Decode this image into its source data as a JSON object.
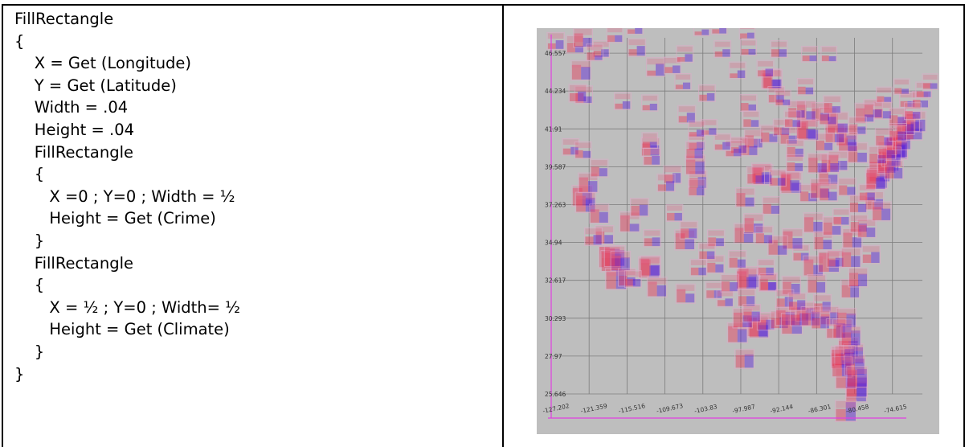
{
  "code": {
    "lines": [
      "FillRectangle",
      "{",
      "    X = Get (Longitude)",
      "    Y = Get (Latitude)",
      "    Width = .04",
      "    Height = .04",
      "    FillRectangle",
      "    {",
      "       X =0 ; Y=0 ; Width = ½",
      "       Height = Get (Crime)",
      "    }",
      "    FillRectangle",
      "    {",
      "       X = ½ ; Y=0 ; Width= ½",
      "       Height = Get (Climate)",
      "    }",
      "}"
    ]
  },
  "chart_data": {
    "type": "scatter",
    "xlim": [
      -127.202,
      -70
    ],
    "ylim": [
      25.646,
      47.5
    ],
    "x_ticks": [
      "-127.202",
      "-121.359",
      "-115.516",
      "-109.673",
      "-103.83",
      "-97.987",
      "-92.144",
      "-86.301",
      "-80.458",
      "-74.615"
    ],
    "y_ticks": [
      "25.646",
      "27.97",
      "30.293",
      "32.617",
      "34.94",
      "37.263",
      "39.587",
      "41.91",
      "44.234",
      "46.557"
    ],
    "grid": true,
    "colors": {
      "background": "#bebebe",
      "grid": "#7c7c7c",
      "axis": "#e040e0",
      "climate": "#5a20d8",
      "crime": "#e63a5a",
      "outline": "#e0a8c8"
    },
    "points": [
      [
        -126.5,
        47.3,
        0.35,
        0.55
      ],
      [
        -123.5,
        47.1,
        0.6,
        0.4
      ],
      [
        -122.3,
        47.5,
        0.75,
        0.5
      ],
      [
        -122.6,
        45.5,
        0.8,
        0.7
      ],
      [
        -122.2,
        44.0,
        0.6,
        0.4
      ],
      [
        -123.1,
        44.1,
        0.5,
        0.6
      ],
      [
        -119.5,
        46.8,
        0.4,
        0.5
      ],
      [
        -117.4,
        47.7,
        0.45,
        0.45
      ],
      [
        -116.2,
        43.6,
        0.35,
        0.5
      ],
      [
        -120.5,
        46.6,
        0.5,
        0.3
      ],
      [
        -114.0,
        46.9,
        0.4,
        0.6
      ],
      [
        -111.1,
        45.7,
        0.3,
        0.7
      ],
      [
        -108.5,
        45.8,
        0.4,
        0.5
      ],
      [
        -106.6,
        46.5,
        0.3,
        0.5
      ],
      [
        -112.0,
        43.5,
        0.35,
        0.45
      ],
      [
        -106.3,
        42.8,
        0.4,
        0.6
      ],
      [
        -104.8,
        41.1,
        0.45,
        0.5
      ],
      [
        -111.9,
        40.8,
        0.7,
        0.6
      ],
      [
        -111.7,
        40.2,
        0.5,
        0.55
      ],
      [
        -112.0,
        41.2,
        0.4,
        0.4
      ],
      [
        -122.4,
        37.8,
        0.9,
        0.7
      ],
      [
        -121.9,
        37.4,
        0.85,
        0.75
      ],
      [
        -121.5,
        38.6,
        0.8,
        0.6
      ],
      [
        -119.8,
        36.7,
        0.75,
        0.6
      ],
      [
        -119.0,
        35.4,
        0.7,
        0.5
      ],
      [
        -118.2,
        34.05,
        1.0,
        0.9
      ],
      [
        -117.9,
        33.8,
        0.95,
        0.85
      ],
      [
        -117.4,
        34.1,
        0.9,
        0.8
      ],
      [
        -117.2,
        32.7,
        0.85,
        0.95
      ],
      [
        -116.5,
        33.8,
        0.8,
        0.7
      ],
      [
        -115.5,
        32.8,
        0.6,
        0.5
      ],
      [
        -120.7,
        35.3,
        0.5,
        0.6
      ],
      [
        -124.2,
        40.8,
        0.4,
        0.5
      ],
      [
        -122.3,
        40.6,
        0.5,
        0.45
      ],
      [
        -119.8,
        39.5,
        0.6,
        0.5
      ],
      [
        -115.1,
        36.2,
        0.85,
        0.4
      ],
      [
        -112.1,
        33.4,
        0.95,
        0.6
      ],
      [
        -111.9,
        33.5,
        0.85,
        0.55
      ],
      [
        -110.9,
        32.2,
        0.8,
        0.6
      ],
      [
        -114.6,
        32.7,
        0.5,
        0.5
      ],
      [
        -106.6,
        35.1,
        0.85,
        0.55
      ],
      [
        -106.0,
        35.7,
        0.6,
        0.6
      ],
      [
        -106.5,
        31.8,
        0.75,
        0.5
      ],
      [
        -104.6,
        38.8,
        0.6,
        0.65
      ],
      [
        -105.0,
        39.7,
        0.8,
        0.7
      ],
      [
        -105.1,
        40.6,
        0.6,
        0.6
      ],
      [
        -104.8,
        38.3,
        0.5,
        0.5
      ],
      [
        -103.2,
        44.1,
        0.4,
        0.5
      ],
      [
        -96.8,
        43.5,
        0.5,
        0.4
      ],
      [
        -96.8,
        46.9,
        0.4,
        0.4
      ],
      [
        -100.8,
        46.8,
        0.35,
        0.5
      ],
      [
        -98.5,
        45.5,
        0.3,
        0.5
      ],
      [
        -93.3,
        44.98,
        0.8,
        0.45
      ],
      [
        -93.1,
        44.95,
        0.75,
        0.5
      ],
      [
        -92.5,
        44.0,
        0.5,
        0.5
      ],
      [
        -94.2,
        45.6,
        0.4,
        0.5
      ],
      [
        -92.1,
        46.8,
        0.5,
        0.5
      ],
      [
        -96.0,
        41.3,
        0.7,
        0.5
      ],
      [
        -96.7,
        40.8,
        0.6,
        0.55
      ],
      [
        -93.6,
        41.6,
        0.6,
        0.5
      ],
      [
        -91.7,
        42.0,
        0.5,
        0.5
      ],
      [
        -90.6,
        41.5,
        0.6,
        0.5
      ],
      [
        -94.6,
        39.1,
        0.85,
        0.5
      ],
      [
        -94.8,
        39.2,
        0.8,
        0.55
      ],
      [
        -95.7,
        39.05,
        0.6,
        0.5
      ],
      [
        -97.3,
        37.7,
        0.75,
        0.5
      ],
      [
        -90.2,
        38.6,
        0.95,
        0.5
      ],
      [
        -90.4,
        38.7,
        0.85,
        0.55
      ],
      [
        -92.3,
        38.9,
        0.5,
        0.5
      ],
      [
        -93.3,
        37.2,
        0.6,
        0.5
      ],
      [
        -97.5,
        35.5,
        0.8,
        0.55
      ],
      [
        -96.0,
        36.1,
        0.8,
        0.5
      ],
      [
        -96.8,
        32.8,
        0.95,
        0.65
      ],
      [
        -97.1,
        32.7,
        0.9,
        0.6
      ],
      [
        -95.4,
        29.8,
        0.95,
        0.7
      ],
      [
        -95.2,
        29.7,
        0.85,
        0.65
      ],
      [
        -98.5,
        29.4,
        0.85,
        0.7
      ],
      [
        -97.7,
        30.3,
        0.8,
        0.65
      ],
      [
        -97.4,
        27.8,
        0.7,
        0.75
      ],
      [
        -101.9,
        33.6,
        0.6,
        0.5
      ],
      [
        -101.8,
        35.2,
        0.55,
        0.5
      ],
      [
        -102.1,
        32.0,
        0.5,
        0.5
      ],
      [
        -100.4,
        31.5,
        0.4,
        0.5
      ],
      [
        -94.1,
        30.1,
        0.6,
        0.6
      ],
      [
        -93.8,
        32.5,
        0.7,
        0.5
      ],
      [
        -92.0,
        30.2,
        0.6,
        0.65
      ],
      [
        -91.1,
        30.45,
        0.8,
        0.7
      ],
      [
        -90.1,
        29.95,
        0.95,
        0.8
      ],
      [
        -90.2,
        32.3,
        0.7,
        0.6
      ],
      [
        -88.7,
        34.3,
        0.5,
        0.5
      ],
      [
        -90.0,
        35.15,
        0.9,
        0.55
      ],
      [
        -92.3,
        34.75,
        0.8,
        0.5
      ],
      [
        -94.4,
        35.4,
        0.6,
        0.5
      ],
      [
        -88.0,
        30.7,
        0.75,
        0.7
      ],
      [
        -86.8,
        33.5,
        0.85,
        0.55
      ],
      [
        -86.3,
        32.4,
        0.7,
        0.6
      ],
      [
        -85.4,
        31.2,
        0.5,
        0.6
      ],
      [
        -84.3,
        30.45,
        0.6,
        0.7
      ],
      [
        -81.7,
        30.3,
        0.8,
        0.75
      ],
      [
        -81.4,
        28.5,
        0.85,
        0.85
      ],
      [
        -82.5,
        27.95,
        0.85,
        0.85
      ],
      [
        -82.6,
        27.8,
        0.8,
        0.8
      ],
      [
        -80.2,
        25.8,
        0.95,
        0.95
      ],
      [
        -80.1,
        26.1,
        0.9,
        0.95
      ],
      [
        -81.8,
        26.6,
        0.6,
        0.9
      ],
      [
        -80.6,
        28.1,
        0.6,
        0.85
      ],
      [
        -84.4,
        33.75,
        0.95,
        0.6
      ],
      [
        -83.4,
        33.95,
        0.5,
        0.55
      ],
      [
        -81.1,
        32.1,
        0.7,
        0.7
      ],
      [
        -81.0,
        34.0,
        0.8,
        0.6
      ],
      [
        -79.9,
        32.8,
        0.75,
        0.7
      ],
      [
        -80.8,
        35.2,
        0.8,
        0.55
      ],
      [
        -79.8,
        36.1,
        0.6,
        0.5
      ],
      [
        -78.6,
        35.8,
        0.7,
        0.55
      ],
      [
        -77.9,
        34.2,
        0.5,
        0.65
      ],
      [
        -77.4,
        37.5,
        0.7,
        0.6
      ],
      [
        -76.3,
        36.85,
        0.75,
        0.65
      ],
      [
        -76.6,
        39.3,
        0.95,
        0.65
      ],
      [
        -77.0,
        38.9,
        0.95,
        0.6
      ],
      [
        -77.2,
        38.8,
        0.85,
        0.6
      ],
      [
        -75.2,
        39.95,
        0.95,
        0.6
      ],
      [
        -74.0,
        40.7,
        1.0,
        0.7
      ],
      [
        -74.2,
        40.73,
        0.9,
        0.65
      ],
      [
        -73.9,
        40.8,
        0.95,
        0.7
      ],
      [
        -73.2,
        41.2,
        0.7,
        0.6
      ],
      [
        -72.7,
        41.8,
        0.7,
        0.6
      ],
      [
        -71.4,
        41.8,
        0.7,
        0.6
      ],
      [
        -71.06,
        42.36,
        0.9,
        0.6
      ],
      [
        -71.8,
        42.3,
        0.6,
        0.55
      ],
      [
        -72.6,
        42.1,
        0.6,
        0.6
      ],
      [
        -73.8,
        42.65,
        0.6,
        0.5
      ],
      [
        -76.1,
        43.05,
        0.6,
        0.45
      ],
      [
        -77.6,
        43.15,
        0.7,
        0.45
      ],
      [
        -78.9,
        42.9,
        0.75,
        0.4
      ],
      [
        -80.0,
        42.1,
        0.6,
        0.45
      ],
      [
        -80.0,
        40.45,
        0.85,
        0.5
      ],
      [
        -81.7,
        41.5,
        0.9,
        0.5
      ],
      [
        -81.5,
        41.1,
        0.75,
        0.5
      ],
      [
        -83.0,
        39.95,
        0.8,
        0.5
      ],
      [
        -84.5,
        39.1,
        0.8,
        0.5
      ],
      [
        -84.2,
        39.8,
        0.7,
        0.5
      ],
      [
        -83.5,
        41.65,
        0.8,
        0.45
      ],
      [
        -83.05,
        42.3,
        0.95,
        0.45
      ],
      [
        -85.7,
        42.95,
        0.7,
        0.45
      ],
      [
        -84.55,
        42.7,
        0.6,
        0.45
      ],
      [
        -86.15,
        39.8,
        0.8,
        0.5
      ],
      [
        -85.1,
        41.1,
        0.6,
        0.45
      ],
      [
        -87.6,
        41.85,
        0.95,
        0.5
      ],
      [
        -87.9,
        41.9,
        0.85,
        0.5
      ],
      [
        -87.9,
        43.05,
        0.8,
        0.45
      ],
      [
        -89.4,
        43.1,
        0.6,
        0.45
      ],
      [
        -88.0,
        44.5,
        0.5,
        0.45
      ],
      [
        -89.6,
        40.7,
        0.6,
        0.5
      ],
      [
        -89.65,
        39.8,
        0.55,
        0.5
      ],
      [
        -87.55,
        37.97,
        0.6,
        0.5
      ],
      [
        -85.75,
        38.25,
        0.8,
        0.5
      ],
      [
        -84.5,
        38.05,
        0.7,
        0.5
      ],
      [
        -86.8,
        36.15,
        0.8,
        0.55
      ],
      [
        -85.3,
        35.05,
        0.7,
        0.55
      ],
      [
        -83.9,
        35.95,
        0.7,
        0.5
      ],
      [
        -82.5,
        36.5,
        0.5,
        0.5
      ],
      [
        -81.6,
        38.35,
        0.6,
        0.5
      ],
      [
        -79.9,
        37.3,
        0.6,
        0.5
      ],
      [
        -78.5,
        38.0,
        0.5,
        0.5
      ],
      [
        -75.5,
        39.75,
        0.7,
        0.6
      ],
      [
        -74.75,
        40.2,
        0.75,
        0.6
      ],
      [
        -74.4,
        39.4,
        0.7,
        0.6
      ],
      [
        -76.9,
        40.3,
        0.6,
        0.5
      ],
      [
        -75.5,
        40.6,
        0.6,
        0.5
      ],
      [
        -75.9,
        41.4,
        0.6,
        0.5
      ],
      [
        -73.8,
        41.7,
        0.6,
        0.55
      ],
      [
        -72.3,
        43.7,
        0.4,
        0.4
      ],
      [
        -70.3,
        43.7,
        0.5,
        0.45
      ],
      [
        -71.5,
        43.0,
        0.5,
        0.45
      ],
      [
        -73.2,
        44.5,
        0.4,
        0.35
      ],
      [
        -69.8,
        44.3,
        0.4,
        0.4
      ],
      [
        -68.8,
        44.8,
        0.4,
        0.4
      ],
      [
        -75.9,
        44.0,
        0.4,
        0.35
      ],
      [
        -83.9,
        43.4,
        0.6,
        0.4
      ],
      [
        -84.4,
        46.5,
        0.4,
        0.35
      ],
      [
        -87.4,
        46.5,
        0.4,
        0.4
      ],
      [
        -90.0,
        42.5,
        0.5,
        0.45
      ],
      [
        -96.4,
        42.5,
        0.5,
        0.45
      ],
      [
        -98.3,
        40.9,
        0.4,
        0.5
      ],
      [
        -99.1,
        40.7,
        0.35,
        0.5
      ],
      [
        -100.8,
        41.1,
        0.35,
        0.5
      ],
      [
        -102.9,
        42.0,
        0.3,
        0.45
      ],
      [
        -108.5,
        39.1,
        0.5,
        0.6
      ],
      [
        -109.5,
        38.6,
        0.4,
        0.6
      ],
      [
        -113.6,
        37.1,
        0.6,
        0.65
      ],
      [
        -111.65,
        35.2,
        0.5,
        0.55
      ],
      [
        -108.2,
        36.75,
        0.5,
        0.5
      ],
      [
        -103.2,
        34.4,
        0.5,
        0.5
      ],
      [
        -104.5,
        33.4,
        0.5,
        0.5
      ],
      [
        -99.7,
        32.45,
        0.6,
        0.55
      ],
      [
        -98.5,
        33.9,
        0.6,
        0.5
      ],
      [
        -97.1,
        31.55,
        0.6,
        0.6
      ],
      [
        -96.3,
        30.6,
        0.6,
        0.6
      ],
      [
        -94.1,
        33.4,
        0.5,
        0.5
      ],
      [
        -93.75,
        32.5,
        0.5,
        0.5
      ],
      [
        -91.2,
        31.5,
        0.5,
        0.6
      ],
      [
        -88.9,
        30.4,
        0.6,
        0.7
      ],
      [
        -89.3,
        31.3,
        0.5,
        0.6
      ],
      [
        -87.2,
        30.4,
        0.7,
        0.75
      ],
      [
        -85.7,
        30.2,
        0.6,
        0.7
      ],
      [
        -83.3,
        29.65,
        0.5,
        0.8
      ],
      [
        -82.3,
        29.65,
        0.7,
        0.75
      ],
      [
        -81.0,
        29.2,
        0.7,
        0.8
      ],
      [
        -81.95,
        28.0,
        0.6,
        0.85
      ],
      [
        -82.4,
        27.3,
        0.7,
        0.85
      ],
      [
        -80.4,
        27.4,
        0.6,
        0.85
      ],
      [
        -80.05,
        26.7,
        0.85,
        0.9
      ],
      [
        -81.8,
        24.6,
        0.6,
        0.95
      ],
      [
        -106.9,
        44.8,
        0.3,
        0.45
      ],
      [
        -104.8,
        41.9,
        0.3,
        0.45
      ],
      [
        -101.3,
        48.2,
        0.3,
        0.4
      ],
      [
        -97.0,
        47.9,
        0.35,
        0.4
      ],
      [
        -114.3,
        48.2,
        0.3,
        0.45
      ],
      [
        -104.0,
        48.1,
        0.25,
        0.4
      ],
      [
        -91.5,
        43.8,
        0.4,
        0.4
      ]
    ]
  }
}
